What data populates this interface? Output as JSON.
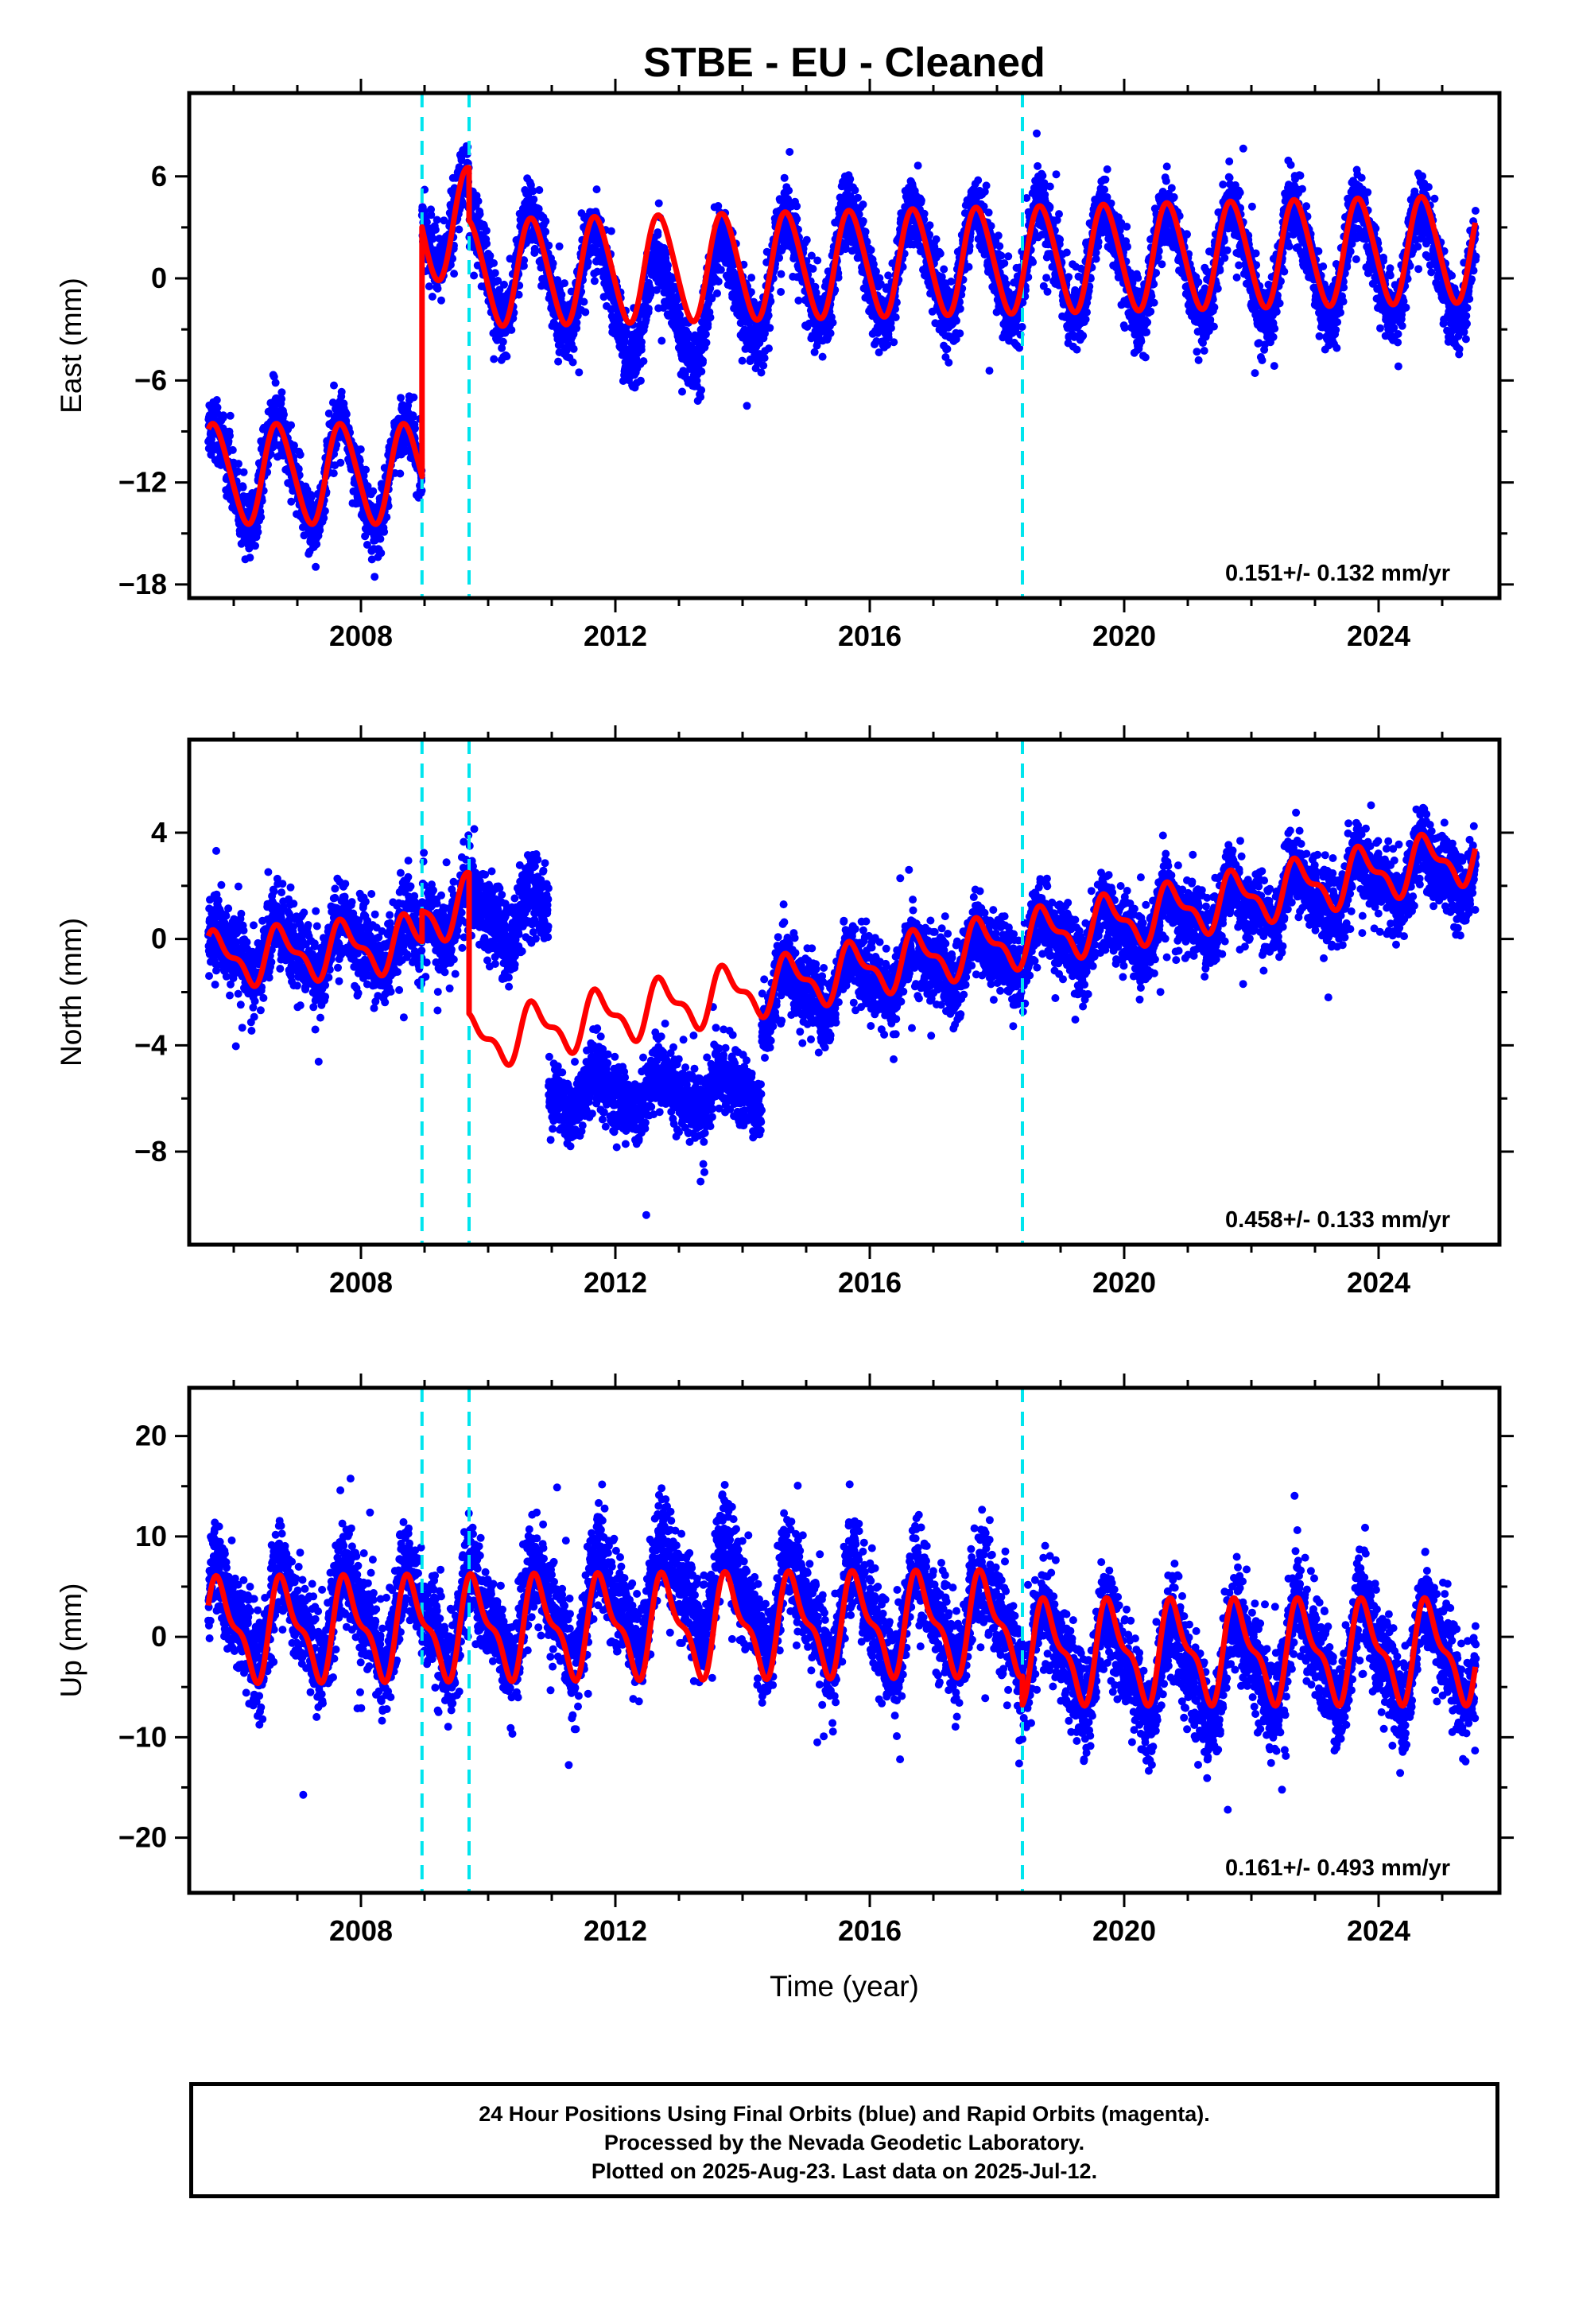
{
  "title": "STBE  - EU - Cleaned",
  "chart_data": [
    {
      "type": "scatter",
      "panel": "east",
      "ylabel": "East (mm)",
      "xlabel": "",
      "xlim": [
        2005.3,
        2025.9
      ],
      "ylim": [
        -18.8,
        10.9
      ],
      "yticks": [
        -18,
        -12,
        -6,
        0,
        6
      ],
      "xticks": [
        2008,
        2012,
        2016,
        2020,
        2024
      ],
      "rate_label": "0.151+/- 0.132 mm/yr",
      "legend": "none",
      "offset_epochs": [
        2008.96,
        2009.7,
        2018.4
      ],
      "series": [
        {
          "name": "Final Orbits (blue)",
          "color": "#0000ff",
          "segments": [
            {
              "start": 2005.6,
              "end": 2008.96,
              "base": -11.5,
              "trend": 0.0,
              "amp": 3.0,
              "amp2": 0.4,
              "phase": 0.45,
              "noise": 1.6
            },
            {
              "start": 2008.96,
              "end": 2009.7,
              "base": 3.5,
              "trend": 0.0,
              "amp": 2.8,
              "amp2": 0.3,
              "phase": 0.45,
              "noise": 1.7
            },
            {
              "start": 2009.7,
              "end": 2025.53,
              "base": 0.9,
              "trend": 0.0,
              "amp": 3.2,
              "amp2": 0.4,
              "phase": 0.45,
              "noise": 1.8,
              "dip_center": 2012.9,
              "dip_width": 1.4,
              "dip_depth": -3.0
            }
          ]
        },
        {
          "name": "Model",
          "color": "#ff0000",
          "segments": [
            {
              "start": 2005.6,
              "end": 2008.96,
              "base": -11.5,
              "trend": 0.0,
              "amp": 2.9,
              "amp2": 0.3,
              "phase": 0.45
            },
            {
              "start": 2008.96,
              "end": 2009.7,
              "base": 3.2,
              "trend": 0.0,
              "amp": 3.3,
              "amp2": 0.2,
              "phase": 0.45
            },
            {
              "start": 2009.7,
              "end": 2025.53,
              "base": 0.3,
              "trend": 0.09,
              "amp": 3.1,
              "amp2": 0.3,
              "phase": 0.45
            }
          ]
        }
      ]
    },
    {
      "type": "scatter",
      "panel": "north",
      "ylabel": "North (mm)",
      "xlabel": "",
      "xlim": [
        2005.3,
        2025.9
      ],
      "ylim": [
        -11.5,
        7.5
      ],
      "yticks": [
        -8,
        -4,
        0,
        4
      ],
      "xticks": [
        2008,
        2012,
        2016,
        2020,
        2024
      ],
      "rate_label": "0.458+/- 0.133 mm/yr",
      "legend": "none",
      "offset_epochs": [
        2008.96,
        2009.7,
        2018.4
      ],
      "series": [
        {
          "name": "Final Orbits (blue)",
          "color": "#0000ff",
          "segments": [
            {
              "start": 2005.6,
              "end": 2008.96,
              "base": -0.5,
              "trend": 0.1,
              "amp": 0.8,
              "amp2": 0.3,
              "phase": 0.5,
              "noise": 1.3
            },
            {
              "start": 2008.96,
              "end": 2010.95,
              "base": 0.9,
              "trend": 0.0,
              "amp": 0.9,
              "amp2": 0.3,
              "phase": 0.5,
              "noise": 1.3
            },
            {
              "start": 2010.95,
              "end": 2014.3,
              "base": -5.8,
              "trend": 0.0,
              "amp": 0.6,
              "amp2": 0.2,
              "phase": 0.5,
              "noise": 1.1
            },
            {
              "start": 2014.3,
              "end": 2025.53,
              "base": -2.2,
              "trend": 0.45,
              "amp": 0.8,
              "amp2": 0.4,
              "phase": 0.5,
              "noise": 1.2
            }
          ]
        },
        {
          "name": "Model",
          "color": "#ff0000",
          "segments": [
            {
              "start": 2005.6,
              "end": 2008.96,
              "base": -0.8,
              "trend": 0.2,
              "amp": 0.9,
              "amp2": 0.4,
              "phase": 0.5
            },
            {
              "start": 2008.96,
              "end": 2009.7,
              "base": 1.0,
              "trend": 0.4,
              "amp": 1.0,
              "amp2": 0.4,
              "phase": 0.5
            },
            {
              "start": 2009.7,
              "end": 2025.53,
              "base": -3.9,
              "trend": 0.448,
              "amp": 0.9,
              "amp2": 0.4,
              "phase": 0.5
            }
          ]
        }
      ]
    },
    {
      "type": "scatter",
      "panel": "up",
      "ylabel": "Up (mm)",
      "xlabel": "Time (year)",
      "xlim": [
        2005.3,
        2025.9
      ],
      "ylim": [
        -25.5,
        24.8
      ],
      "yticks": [
        -20,
        -10,
        0,
        10,
        20
      ],
      "xticks": [
        2008,
        2012,
        2016,
        2020,
        2024
      ],
      "rate_label": "0.161+/- 0.493 mm/yr",
      "legend": "none",
      "offset_epochs": [
        2008.96,
        2009.7,
        2018.4
      ],
      "series": [
        {
          "name": "Final Orbits (blue)",
          "color": "#0000ff",
          "segments": [
            {
              "start": 2005.6,
              "end": 2018.4,
              "base": 1.8,
              "trend": 0.0,
              "amp": 4.4,
              "amp2": 1.6,
              "phase": 0.55,
              "noise": 4.2,
              "dip_center": 2013.3,
              "dip_width": 1.5,
              "dip_depth": 3.0
            },
            {
              "start": 2018.4,
              "end": 2025.53,
              "base": -1.8,
              "trend": 0.0,
              "amp": 4.3,
              "amp2": 1.5,
              "phase": 0.55,
              "noise": 4.2,
              "dip_center": 2021.0,
              "dip_width": 1.2,
              "dip_depth": -2.0
            }
          ]
        },
        {
          "name": "Model",
          "color": "#ff0000",
          "segments": [
            {
              "start": 2005.6,
              "end": 2018.4,
              "base": 0.7,
              "trend": 0.05,
              "amp": 4.4,
              "amp2": 1.8,
              "phase": 0.55
            },
            {
              "start": 2018.4,
              "end": 2025.53,
              "base": -1.5,
              "trend": 0.0,
              "amp": 4.4,
              "amp2": 1.8,
              "phase": 0.55
            }
          ]
        }
      ]
    }
  ],
  "footer": {
    "line1": "24 Hour Positions Using Final Orbits (blue) and Rapid Orbits (magenta).",
    "line2": "Processed by the Nevada Geodetic Laboratory.",
    "line3": "Plotted on 2025-Aug-23. Last data on 2025-Jul-12."
  },
  "colors": {
    "points": "#0000ff",
    "model": "#ff0000",
    "offsets": "#00e5ee",
    "frame": "#000000"
  }
}
